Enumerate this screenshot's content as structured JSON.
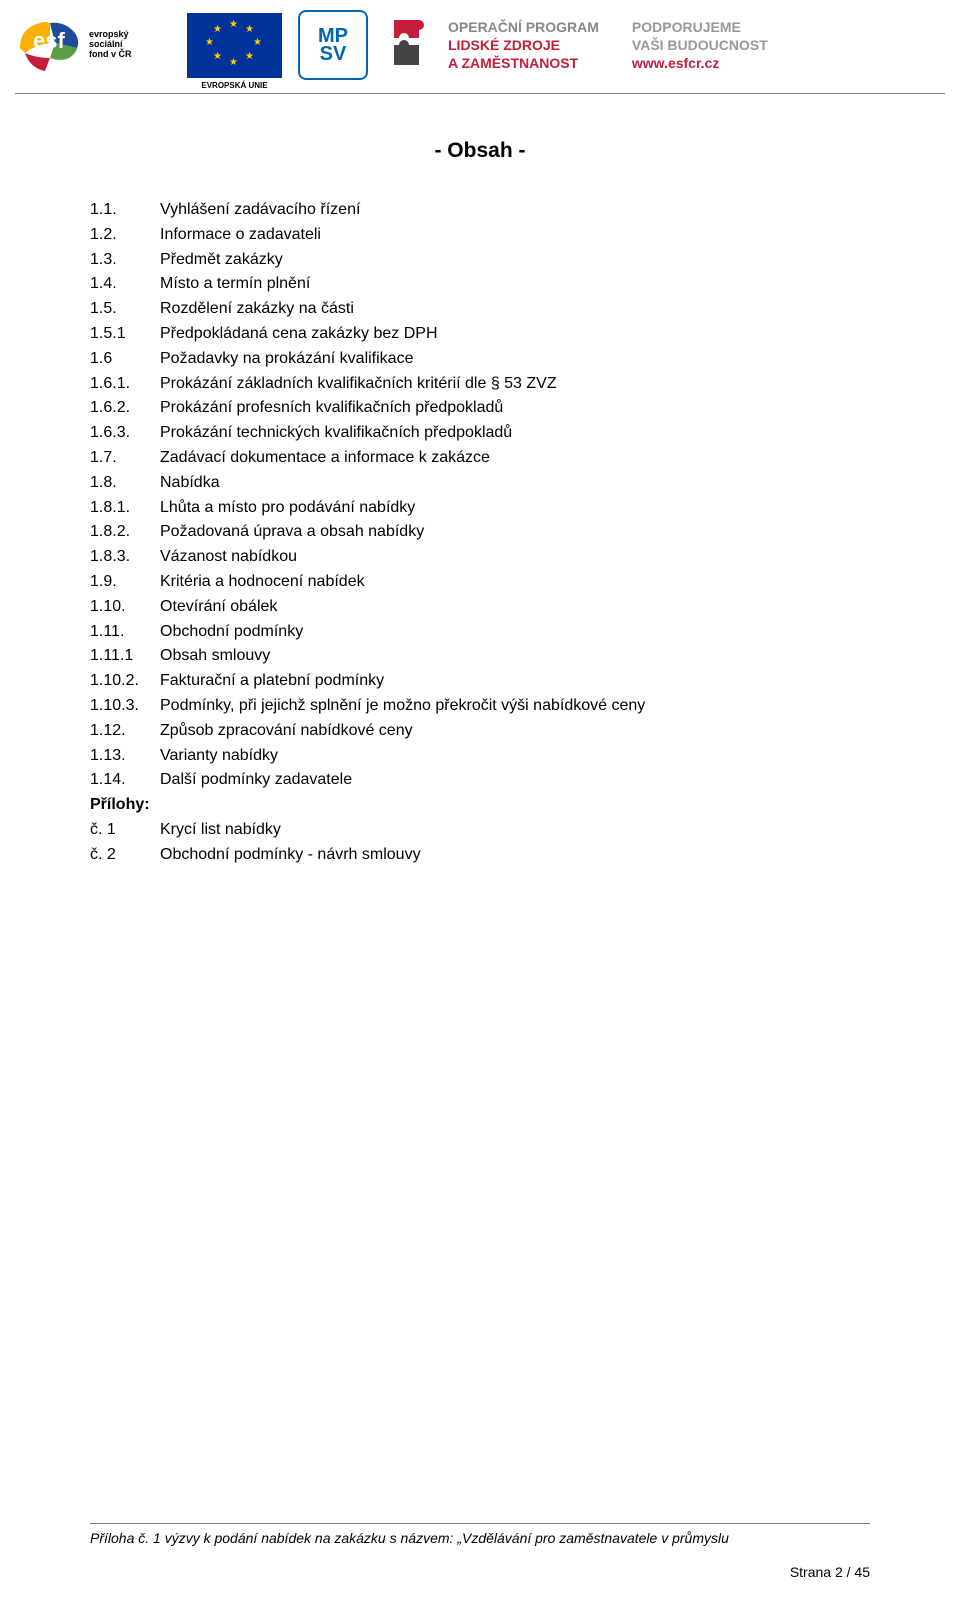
{
  "header": {
    "esf": {
      "text_lines": "evropský\nsociální\nfond v ČR",
      "colors": {
        "yellow": "#f9b000",
        "blue": "#1e4b9b",
        "red": "#c41e3a",
        "green": "#5a9e3f"
      }
    },
    "eu_flag": {
      "label": "EVROPSKÁ UNIE",
      "bg": "#003399",
      "star": "#ffcc00"
    },
    "mpsv": {
      "line1": "MP",
      "line2": "SV",
      "color": "#0066b3"
    },
    "puzzle": {
      "top_color": "#c41e3a",
      "bottom_color": "#444444"
    },
    "op": {
      "line1": "OPERAČNÍ PROGRAM",
      "line2": "LIDSKÉ ZDROJE",
      "line3": "A ZAMĚSTNANOST"
    },
    "support": {
      "line1": "PODPORUJEME",
      "line2": "VAŠI BUDOUCNOST",
      "url": "www.esfcr.cz"
    }
  },
  "title": "-   Obsah  -",
  "toc": [
    {
      "num": "1.1.",
      "label": "Vyhlášení zadávacího řízení"
    },
    {
      "num": "1.2.",
      "label": "Informace o zadavateli"
    },
    {
      "num": "1.3.",
      "label": "Předmět  zakázky"
    },
    {
      "num": "1.4.",
      "label": "Místo a termín plnění"
    },
    {
      "num": "1.5.",
      "label": "Rozdělení zakázky na části"
    },
    {
      "num": "1.5.1",
      "label": "Předpokládaná cena zakázky bez DPH"
    },
    {
      "num": "1.6",
      "label": "Požadavky na prokázání kvalifikace"
    },
    {
      "num": "1.6.1.",
      "label": "Prokázání základních kvalifikačních kritérií dle § 53 ZVZ"
    },
    {
      "num": "1.6.2.",
      "label": "Prokázání profesních kvalifikačních předpokladů"
    },
    {
      "num": "1.6.3.",
      "label": "Prokázání technických kvalifikačních předpokladů"
    },
    {
      "num": "1.7.",
      "label": "Zadávací dokumentace a informace k zakázce"
    },
    {
      "num": "1.8.",
      "label": "Nabídka"
    },
    {
      "num": "1.8.1.",
      "label": "Lhůta a místo pro podávání nabídky"
    },
    {
      "num": "1.8.2.",
      "label": "Požadovaná úprava a obsah nabídky"
    },
    {
      "num": "1.8.3.",
      "label": "Vázanost nabídkou"
    },
    {
      "num": "1.9.",
      "label": "Kritéria a hodnocení nabídek"
    },
    {
      "num": "1.10.",
      "label": "Otevírání obálek"
    },
    {
      "num": "1.11.",
      "label": "Obchodní podmínky"
    },
    {
      "num": "1.11.1",
      "label": "Obsah smlouvy"
    },
    {
      "num": "1.10.2.",
      "label": "Fakturační a platební podmínky"
    },
    {
      "num": "1.10.3.",
      "label": "Podmínky, při jejichž splnění je možno překročit výši nabídkové ceny"
    },
    {
      "num": "1.12.",
      "label": "Způsob zpracování nabídkové ceny"
    },
    {
      "num": "1.13.",
      "label": "Varianty nabídky"
    },
    {
      "num": "1.14.",
      "label": "Další podmínky zadavatele"
    }
  ],
  "attachments_title": "Přílohy:",
  "attachments": [
    {
      "num": "č. 1",
      "label": "Krycí list nabídky"
    },
    {
      "num": "č. 2",
      "label": "Obchodní podmínky - návrh smlouvy"
    }
  ],
  "footer": {
    "text_prefix": "Příloha č. 1 výzvy k podání nabídek na zakázku s názvem: ",
    "text_quoted": "„Vzdělávání pro zaměstnavatele v průmyslu",
    "page": "Strana 2 / 45"
  }
}
